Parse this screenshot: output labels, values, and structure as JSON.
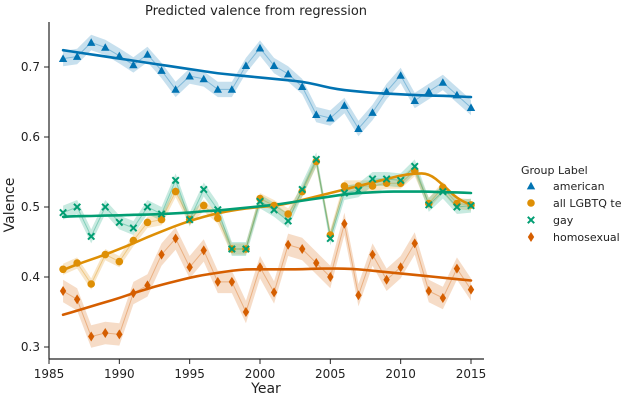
{
  "chart_data": {
    "type": "line",
    "title": "Predicted valence from regression",
    "xlabel": "Year",
    "ylabel": "Valence",
    "xlim": [
      1985,
      2016
    ],
    "ylim": [
      0.28,
      0.77
    ],
    "xticks": [
      1985,
      1990,
      1995,
      2000,
      2005,
      2010,
      2015
    ],
    "yticks": [
      0.3,
      0.4,
      0.5,
      0.6,
      0.7
    ],
    "x": [
      1986,
      1987,
      1988,
      1989,
      1990,
      1991,
      1992,
      1993,
      1994,
      1995,
      1996,
      1997,
      1998,
      1999,
      2000,
      2001,
      2002,
      2003,
      2004,
      2005,
      2006,
      2007,
      2008,
      2009,
      2010,
      2011,
      2012,
      2013,
      2014,
      2015
    ],
    "legend": {
      "title": "Group Label",
      "position": "right"
    },
    "series": [
      {
        "name": "american",
        "color": "#0173b2",
        "marker": "triangle",
        "band": 0.011,
        "values": [
          0.712,
          0.715,
          0.735,
          0.728,
          0.716,
          0.703,
          0.718,
          0.695,
          0.668,
          0.687,
          0.683,
          0.668,
          0.668,
          0.702,
          0.727,
          0.702,
          0.69,
          0.672,
          0.632,
          0.627,
          0.645,
          0.612,
          0.635,
          0.665,
          0.688,
          0.652,
          0.665,
          0.678,
          0.66,
          0.642
        ],
        "trend": [
          0.724,
          0.721,
          0.718,
          0.715,
          0.712,
          0.709,
          0.706,
          0.703,
          0.7,
          0.697,
          0.694,
          0.691,
          0.689,
          0.687,
          0.685,
          0.683,
          0.681,
          0.679,
          0.675,
          0.67,
          0.667,
          0.665,
          0.663,
          0.662,
          0.661,
          0.66,
          0.659,
          0.659,
          0.658,
          0.657
        ]
      },
      {
        "name": "all LGBTQ terms",
        "color": "#de8f05",
        "marker": "circle",
        "band": 0.008,
        "values": [
          0.411,
          0.42,
          0.39,
          0.432,
          0.422,
          0.452,
          0.478,
          0.482,
          0.522,
          0.482,
          0.502,
          0.484,
          0.44,
          0.44,
          0.512,
          0.502,
          0.49,
          0.522,
          0.565,
          0.46,
          0.53,
          0.53,
          0.53,
          0.534,
          0.534,
          0.552,
          0.505,
          0.528,
          0.505,
          0.503
        ],
        "trend": [
          0.41,
          0.418,
          0.425,
          0.432,
          0.44,
          0.448,
          0.457,
          0.465,
          0.473,
          0.48,
          0.486,
          0.491,
          0.495,
          0.498,
          0.5,
          0.502,
          0.505,
          0.51,
          0.515,
          0.52,
          0.525,
          0.53,
          0.535,
          0.54,
          0.545,
          0.548,
          0.548,
          0.532,
          0.512,
          0.503
        ]
      },
      {
        "name": "gay",
        "color": "#029e73",
        "marker": "x",
        "band": 0.01,
        "values": [
          0.492,
          0.5,
          0.458,
          0.5,
          0.478,
          0.47,
          0.5,
          0.49,
          0.538,
          0.482,
          0.525,
          0.496,
          0.44,
          0.44,
          0.508,
          0.496,
          0.48,
          0.525,
          0.568,
          0.455,
          0.52,
          0.524,
          0.54,
          0.54,
          0.538,
          0.558,
          0.503,
          0.522,
          0.5,
          0.502
        ],
        "trend": [
          0.486,
          0.487,
          0.487,
          0.488,
          0.488,
          0.489,
          0.489,
          0.49,
          0.491,
          0.492,
          0.494,
          0.495,
          0.497,
          0.499,
          0.501,
          0.503,
          0.506,
          0.509,
          0.512,
          0.515,
          0.518,
          0.52,
          0.521,
          0.522,
          0.522,
          0.522,
          0.522,
          0.521,
          0.521,
          0.52
        ]
      },
      {
        "name": "homosexual",
        "color": "#d55e00",
        "marker": "diamond",
        "band": 0.016,
        "values": [
          0.38,
          0.368,
          0.315,
          0.32,
          0.318,
          0.377,
          0.388,
          0.432,
          0.455,
          0.414,
          0.438,
          0.393,
          0.393,
          0.35,
          0.414,
          0.378,
          0.446,
          0.44,
          0.42,
          0.4,
          0.476,
          0.374,
          0.432,
          0.396,
          0.414,
          0.448,
          0.38,
          0.37,
          0.412,
          0.382
        ],
        "trend": [
          0.346,
          0.352,
          0.358,
          0.364,
          0.37,
          0.377,
          0.383,
          0.389,
          0.394,
          0.399,
          0.403,
          0.406,
          0.409,
          0.411,
          0.411,
          0.411,
          0.411,
          0.411,
          0.412,
          0.412,
          0.412,
          0.411,
          0.409,
          0.407,
          0.405,
          0.403,
          0.401,
          0.399,
          0.397,
          0.395
        ]
      }
    ]
  }
}
